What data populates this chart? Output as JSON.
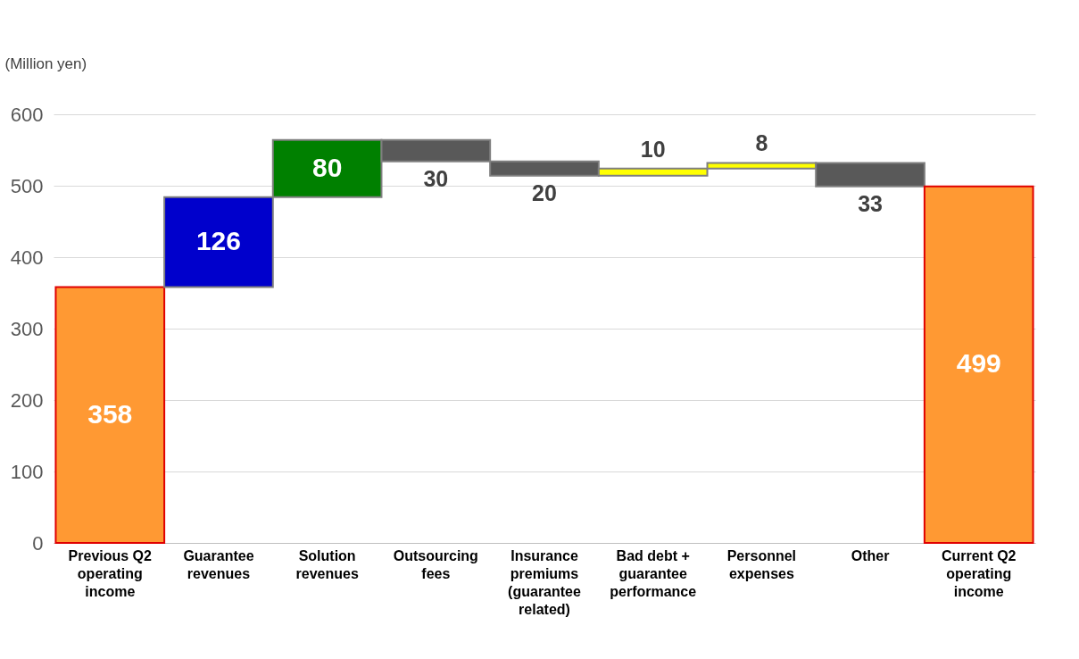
{
  "chart_data": {
    "type": "bar",
    "ylabel": "(Million yen)",
    "categories": [
      "Previous Q2 operating income",
      "Guarantee revenues",
      "Solution revenues",
      "Outsourcing fees",
      "Insurance premiums (guarantee related)",
      "Bad debt + guarantee performance",
      "Personnel expenses",
      "Other",
      "Current Q2 operating income"
    ],
    "values": [
      358,
      126,
      80,
      -30,
      -20,
      10,
      8,
      -33,
      499
    ],
    "base": [
      0,
      358,
      484,
      564,
      534,
      514,
      524,
      532,
      0
    ],
    "colors": [
      "#ff9933",
      "#0000cc",
      "#008000",
      "#595959",
      "#595959",
      "#ffff00",
      "#ffff00",
      "#595959",
      "#ff9933"
    ],
    "value_labels": [
      "358",
      "126",
      "80",
      "30",
      "20",
      "10",
      "8",
      "33",
      "499"
    ],
    "ylim": [
      0,
      600
    ],
    "yticks": [
      0,
      100,
      200,
      300,
      400,
      500,
      600
    ],
    "grid": "y"
  }
}
